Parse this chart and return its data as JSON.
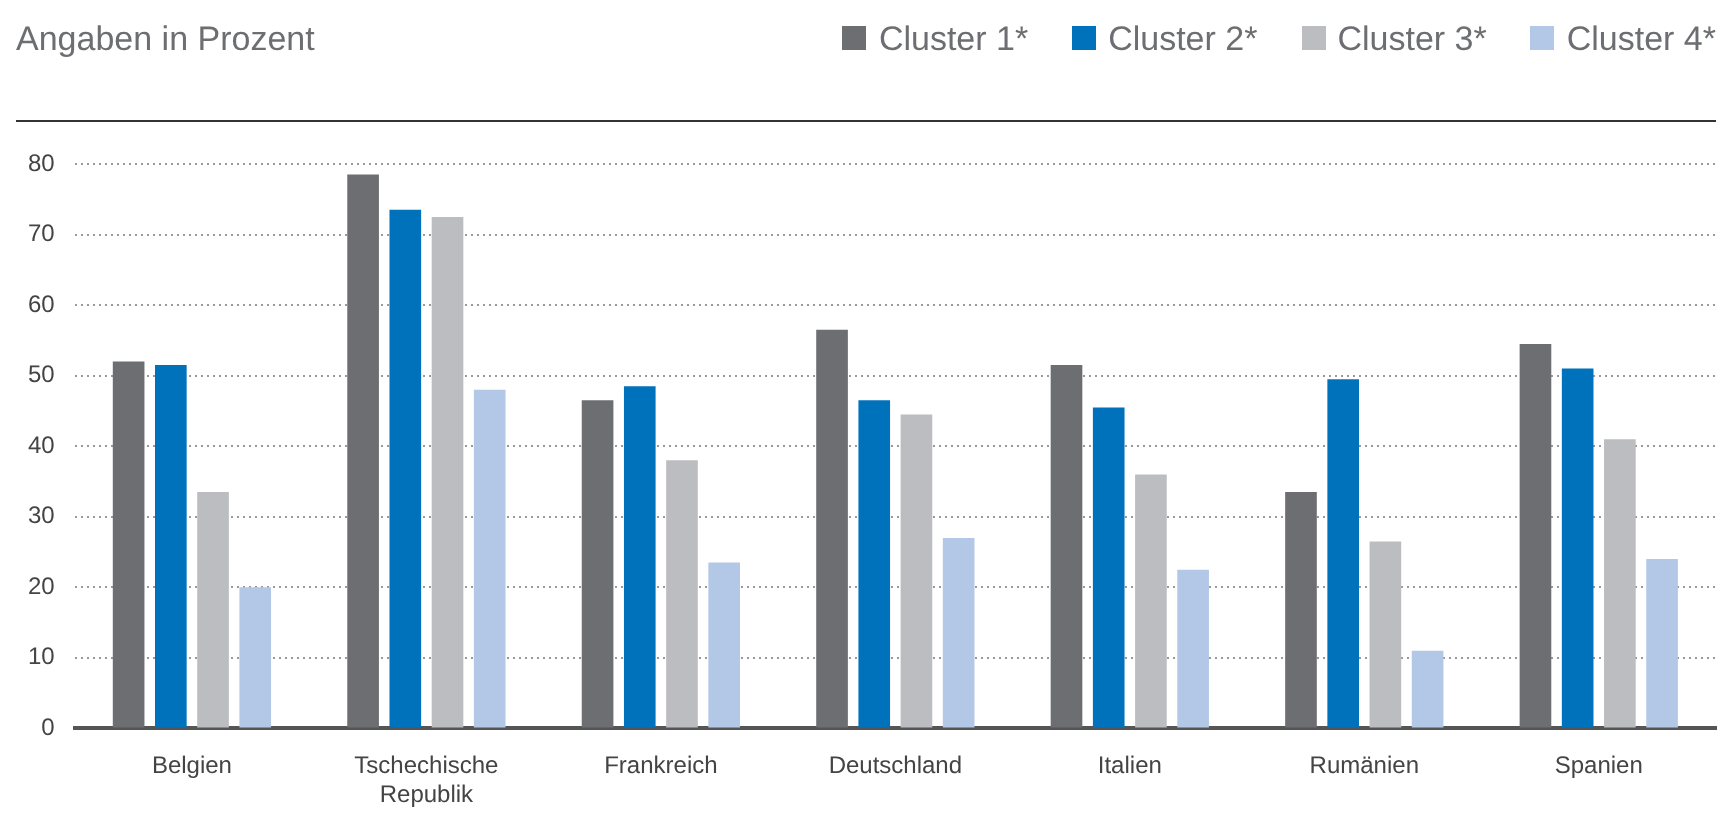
{
  "chart_data": {
    "type": "bar",
    "title": "Angaben in Prozent",
    "categories": [
      "Belgien",
      "Tschechische Republik",
      "Frankreich",
      "Deutschland",
      "Italien",
      "Rumänien",
      "Spanien"
    ],
    "series": [
      {
        "name": "Cluster 1*",
        "color": "#6d6e71",
        "values": [
          52,
          78.5,
          46.5,
          56.5,
          51.5,
          33.5,
          54.5
        ]
      },
      {
        "name": "Cluster 2*",
        "color": "#0072bc",
        "values": [
          51.5,
          73.5,
          48.5,
          46.5,
          45.5,
          49.5,
          51
        ]
      },
      {
        "name": "Cluster 3*",
        "color": "#bcbdc0",
        "values": [
          33.5,
          72.5,
          38,
          44.5,
          36,
          26.5,
          41
        ]
      },
      {
        "name": "Cluster 4*",
        "color": "#b3c7e6",
        "values": [
          20,
          48,
          23.5,
          27,
          22.5,
          11,
          24
        ]
      }
    ],
    "ylim": [
      0,
      80
    ],
    "yticks": [
      0,
      10,
      20,
      30,
      40,
      50,
      60,
      70,
      80
    ],
    "grid": "y",
    "legend": "top right"
  }
}
